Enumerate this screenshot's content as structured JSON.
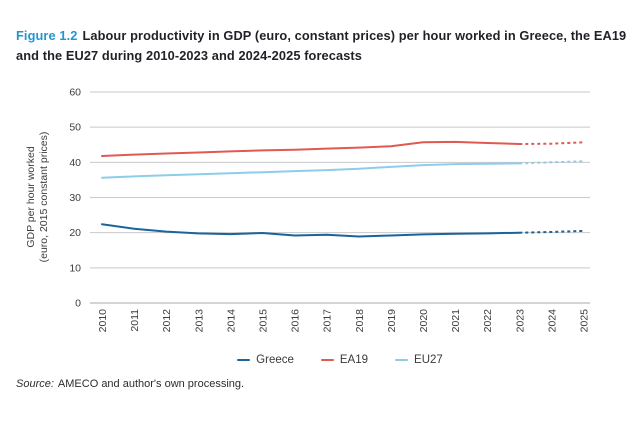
{
  "figure": {
    "label": "Figure 1.2",
    "title": "Labour productivity in GDP (euro, constant prices) per hour worked in Greece, the EA19 and the EU27 during 2010-2023 and 2024-2025 forecasts"
  },
  "source": {
    "prefix": "Source:",
    "text": "AMECO and author's own processing."
  },
  "chart_data": {
    "type": "line",
    "x": [
      2010,
      2011,
      2012,
      2013,
      2014,
      2015,
      2016,
      2017,
      2018,
      2019,
      2020,
      2021,
      2022,
      2023,
      2024,
      2025
    ],
    "forecast_start_year": 2023,
    "forecast_note": "2024-2025 values are forecasts, drawn dashed",
    "ylabel_lines": [
      "GDP per hour worked",
      "(euro, 2015 constant prices)"
    ],
    "ylim": [
      0,
      60
    ],
    "yticks": [
      0,
      10,
      20,
      30,
      40,
      50,
      60
    ],
    "grid": true,
    "legend_position": "bottom",
    "series": [
      {
        "name": "Greece",
        "color": "#1c6399",
        "values": [
          22.4,
          21.1,
          20.3,
          19.8,
          19.6,
          19.9,
          19.2,
          19.4,
          18.9,
          19.2,
          19.5,
          19.7,
          19.8,
          20.0,
          20.2,
          20.5
        ]
      },
      {
        "name": "EA19",
        "color": "#df5a50",
        "values": [
          41.8,
          42.2,
          42.5,
          42.8,
          43.1,
          43.4,
          43.6,
          43.9,
          44.2,
          44.6,
          45.7,
          45.8,
          45.5,
          45.2,
          45.3,
          45.7
        ]
      },
      {
        "name": "EU27",
        "color": "#8ecdea",
        "values": [
          35.6,
          36.0,
          36.3,
          36.6,
          36.9,
          37.2,
          37.5,
          37.8,
          38.2,
          38.7,
          39.2,
          39.5,
          39.6,
          39.7,
          40.0,
          40.3
        ]
      }
    ],
    "colors": {
      "gridline": "#c9c9c9",
      "baseline": "#a8a8a8",
      "tick_text": "#3d3d3d",
      "figure_label_blue": "#2395d0",
      "title_text": "#231f26"
    }
  }
}
